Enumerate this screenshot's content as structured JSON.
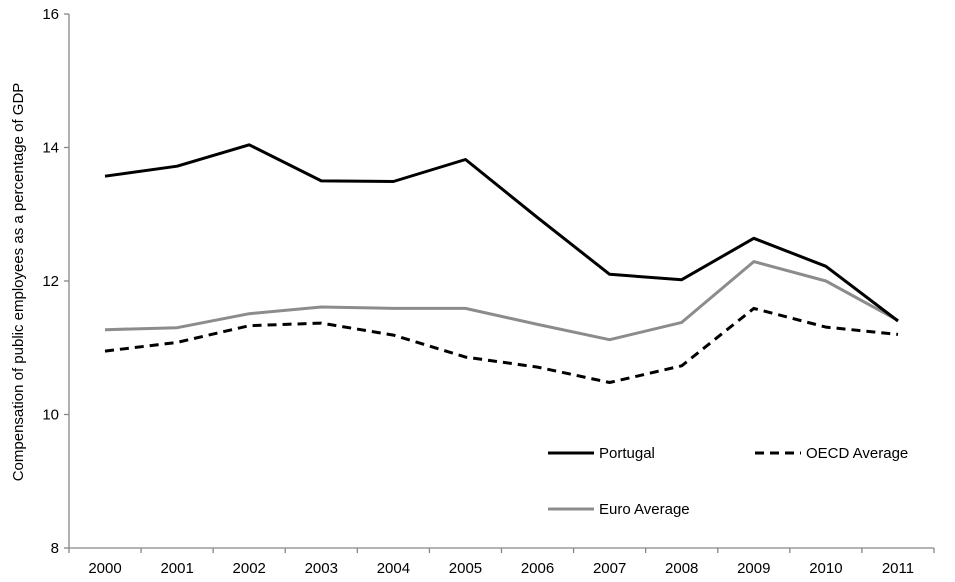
{
  "chart_data": {
    "type": "line",
    "title": "",
    "xlabel": "",
    "ylabel": "Compensation of public employees as a percentage of GDP",
    "ylim": [
      8,
      16
    ],
    "yticks": [
      8,
      10,
      12,
      14,
      16
    ],
    "grid": false,
    "legend_position": "bottom-right",
    "categories": [
      "2000",
      "2001",
      "2002",
      "2003",
      "2004",
      "2005",
      "2006",
      "2007",
      "2008",
      "2009",
      "2010",
      "2011"
    ],
    "series": [
      {
        "name": "Portugal",
        "color": "#000000",
        "style": "solid",
        "values": [
          13.57,
          13.72,
          14.04,
          13.5,
          13.49,
          13.82,
          12.95,
          12.1,
          12.02,
          12.64,
          12.22,
          11.4
        ]
      },
      {
        "name": "OECD Average",
        "color": "#000000",
        "style": "dashed",
        "values": [
          10.95,
          11.08,
          11.33,
          11.37,
          11.19,
          10.86,
          10.71,
          10.48,
          10.73,
          11.59,
          11.31,
          11.2
        ]
      },
      {
        "name": "Euro Average",
        "color": "#8c8c8c",
        "style": "solid",
        "values": [
          11.27,
          11.3,
          11.51,
          11.61,
          11.59,
          11.59,
          11.35,
          11.12,
          11.38,
          12.29,
          12.0,
          11.41
        ]
      }
    ]
  }
}
